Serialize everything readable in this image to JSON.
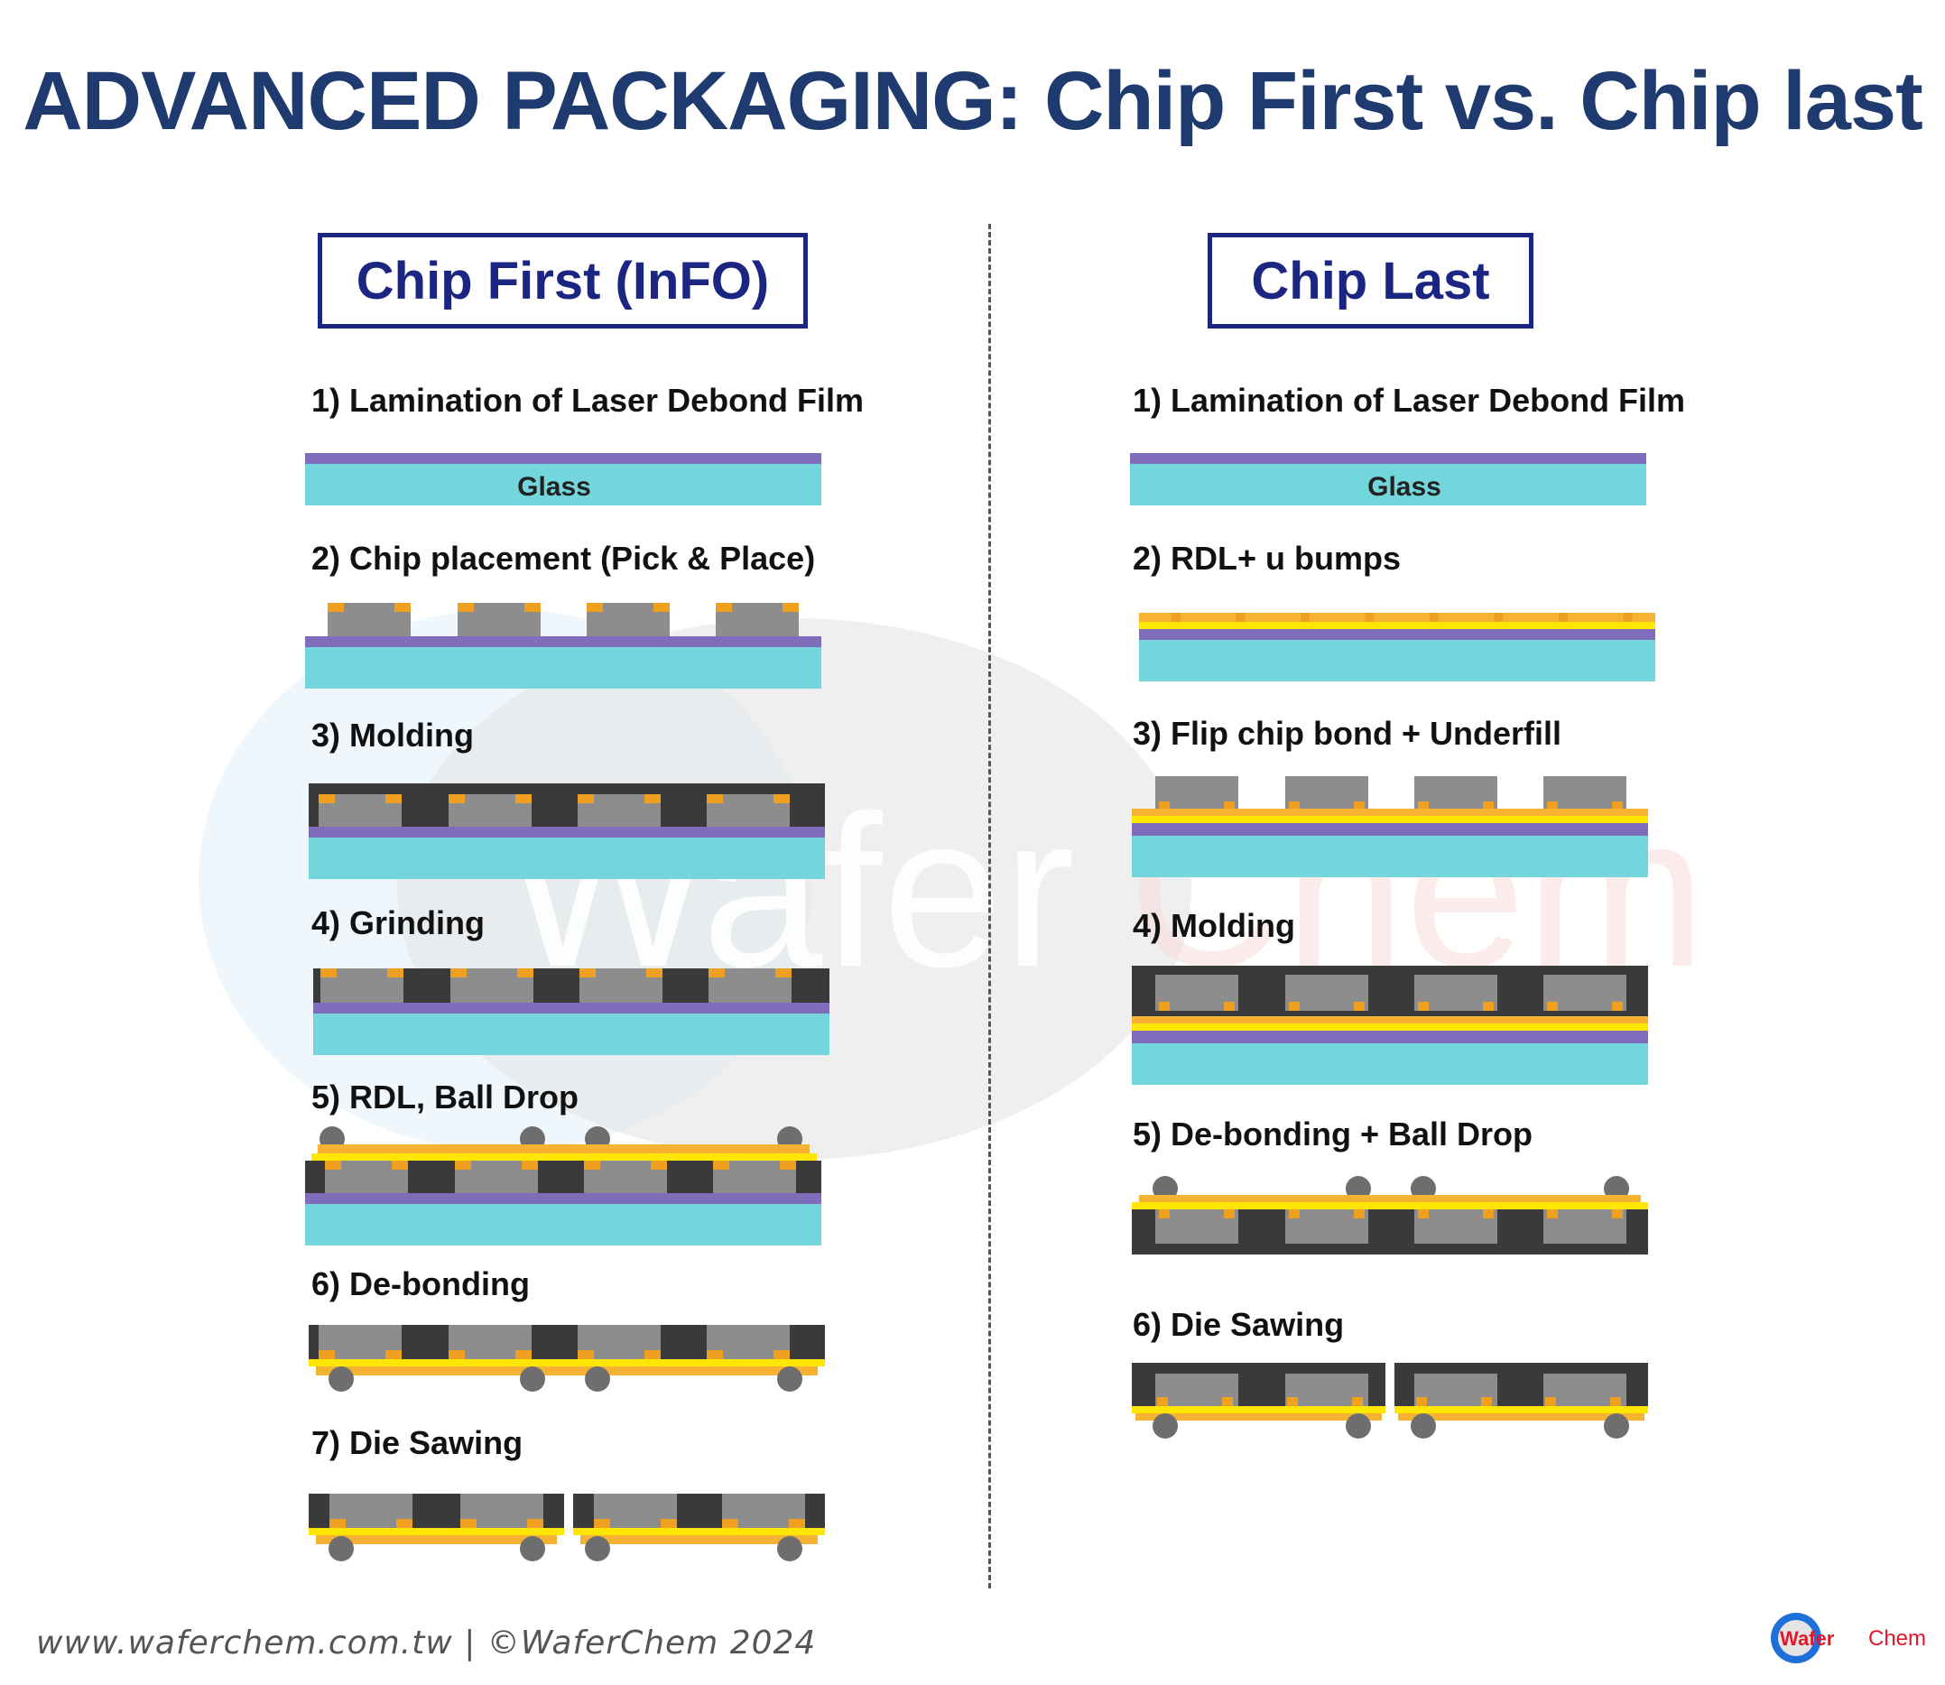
{
  "title": "ADVANCED PACKAGING: Chip First vs. Chip last",
  "colors": {
    "title": "#1e3a6e",
    "box_border": "#1b2682",
    "glass": "#73d6dc",
    "film": "#7f6cba",
    "chip": "#8d8d8d",
    "pad": "#f0a020",
    "mold": "#3a3a3a",
    "rdl_yellow": "#ffe600",
    "rdl_orange": "#f5b233",
    "ball": "#6e6e6e"
  },
  "left": {
    "heading": "Chip First (InFO)",
    "steps": [
      {
        "label": "1) Lamination of Laser Debond Film",
        "layer_label": "Glass"
      },
      {
        "label": "2) Chip placement (Pick & Place)"
      },
      {
        "label": "3) Molding"
      },
      {
        "label": "4) Grinding"
      },
      {
        "label": "5) RDL, Ball Drop"
      },
      {
        "label": "6) De-bonding"
      },
      {
        "label": "7) Die Sawing"
      }
    ]
  },
  "right": {
    "heading": "Chip Last",
    "steps": [
      {
        "label": "1) Lamination of Laser Debond Film",
        "layer_label": "Glass"
      },
      {
        "label": "2) RDL+ u bumps"
      },
      {
        "label": "3) Flip chip bond + Underfill"
      },
      {
        "label": "4) Molding"
      },
      {
        "label": "5) De-bonding + Ball Drop"
      },
      {
        "label": "6) Die Sawing"
      }
    ]
  },
  "watermark": {
    "part1": "Wafer",
    "part2": "Chem"
  },
  "footer": "www.waferchem.com.tw | ©WaferChem 2024",
  "logo": {
    "part1": "Wafer",
    "part2": "Chem"
  }
}
